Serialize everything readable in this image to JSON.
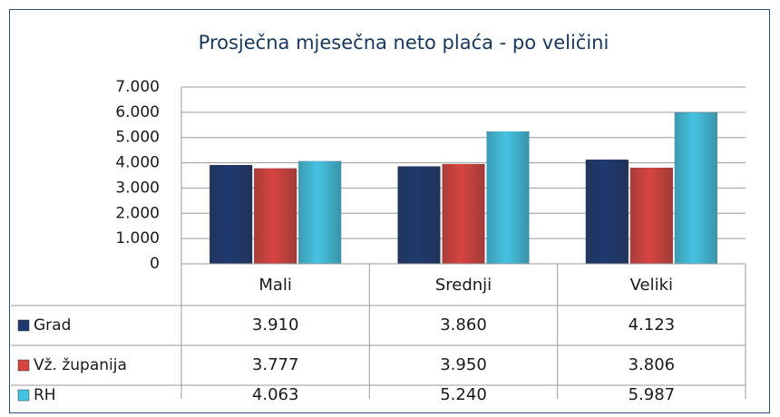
{
  "chart_data": {
    "type": "bar",
    "title": "Prosječna mjesečna neto plaća - po veličini",
    "categories": [
      "Mali",
      "Srednji",
      "Veliki"
    ],
    "series": [
      {
        "name": "Grad",
        "color": "#1f3a70",
        "values": [
          3910,
          3860,
          4123
        ],
        "value_labels": [
          "3.910",
          "3.860",
          "4.123"
        ]
      },
      {
        "name": "Vž. županija",
        "color": "#d64541",
        "values": [
          3777,
          3950,
          3806
        ],
        "value_labels": [
          "3.777",
          "3.950",
          "3.806"
        ]
      },
      {
        "name": "RH",
        "color": "#45c3e2",
        "values": [
          4063,
          5240,
          5987
        ],
        "value_labels": [
          "4.063",
          "5.240",
          "5.987"
        ]
      }
    ],
    "ylim": [
      0,
      7000
    ],
    "yticks": [
      0,
      {
        "value": 1000,
        "label": "1.000"
      },
      {
        "value": 2000,
        "label": "2.000"
      },
      {
        "value": 3000,
        "label": "3.000"
      },
      {
        "value": 4000,
        "label": "4.000"
      },
      {
        "value": 5000,
        "label": "5.000"
      },
      {
        "value": 6000,
        "label": "6.000"
      },
      {
        "value": 7000,
        "label": "7.000"
      }
    ],
    "grid": true
  }
}
